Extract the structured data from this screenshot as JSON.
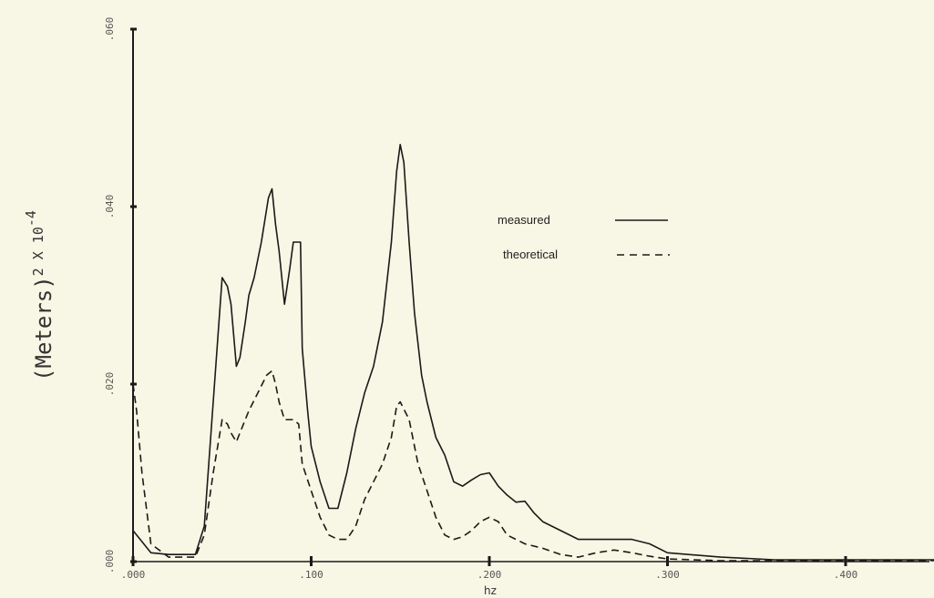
{
  "chart_data": {
    "type": "line",
    "title": "",
    "xlabel": "hz",
    "ylabel": "(Meters)",
    "ylabel_unit": "2 X 10",
    "ylabel_exponent": "-4",
    "xlim": [
      0,
      0.45
    ],
    "ylim": [
      0,
      0.06
    ],
    "x_ticks": [
      0,
      0.1,
      0.2,
      0.3,
      0.4
    ],
    "x_tick_labels": [
      ".000",
      ".100",
      ".200",
      ".300",
      ".400"
    ],
    "y_ticks": [
      0,
      0.02,
      0.04,
      0.06
    ],
    "y_tick_labels": [
      ".000",
      ".020",
      ".040",
      ".060"
    ],
    "legend_position": "upper-right",
    "colors": {
      "ink": "#1a1a1a",
      "background": "#f8f6e4"
    },
    "series": [
      {
        "name": "measured",
        "style": "solid",
        "x": [
          0.0,
          0.002,
          0.01,
          0.02,
          0.035,
          0.04,
          0.045,
          0.05,
          0.053,
          0.055,
          0.058,
          0.06,
          0.063,
          0.065,
          0.068,
          0.072,
          0.076,
          0.078,
          0.08,
          0.082,
          0.085,
          0.088,
          0.09,
          0.092,
          0.094,
          0.095,
          0.098,
          0.1,
          0.105,
          0.11,
          0.115,
          0.12,
          0.125,
          0.13,
          0.135,
          0.14,
          0.145,
          0.148,
          0.15,
          0.152,
          0.155,
          0.158,
          0.162,
          0.165,
          0.17,
          0.175,
          0.18,
          0.185,
          0.19,
          0.195,
          0.2,
          0.205,
          0.21,
          0.215,
          0.22,
          0.225,
          0.23,
          0.24,
          0.25,
          0.26,
          0.27,
          0.28,
          0.29,
          0.3,
          0.33,
          0.36,
          0.4,
          0.45
        ],
        "y": [
          0.0035,
          0.003,
          0.001,
          0.0008,
          0.0008,
          0.004,
          0.018,
          0.032,
          0.031,
          0.029,
          0.022,
          0.023,
          0.027,
          0.03,
          0.032,
          0.036,
          0.041,
          0.042,
          0.038,
          0.035,
          0.029,
          0.033,
          0.036,
          0.036,
          0.036,
          0.024,
          0.017,
          0.013,
          0.009,
          0.006,
          0.006,
          0.01,
          0.015,
          0.019,
          0.022,
          0.027,
          0.036,
          0.044,
          0.047,
          0.045,
          0.036,
          0.028,
          0.021,
          0.018,
          0.014,
          0.012,
          0.009,
          0.0085,
          0.0092,
          0.0098,
          0.01,
          0.0085,
          0.0075,
          0.0067,
          0.0068,
          0.0055,
          0.0045,
          0.0035,
          0.0025,
          0.0025,
          0.0025,
          0.0025,
          0.002,
          0.001,
          0.0005,
          0.0002,
          0.0002,
          0.0002
        ]
      },
      {
        "name": "theoretical",
        "style": "dashed",
        "x": [
          0.0,
          0.002,
          0.005,
          0.01,
          0.02,
          0.035,
          0.04,
          0.045,
          0.05,
          0.053,
          0.055,
          0.058,
          0.06,
          0.065,
          0.07,
          0.075,
          0.078,
          0.08,
          0.082,
          0.085,
          0.088,
          0.09,
          0.093,
          0.095,
          0.1,
          0.105,
          0.11,
          0.115,
          0.12,
          0.125,
          0.13,
          0.135,
          0.14,
          0.145,
          0.148,
          0.15,
          0.155,
          0.16,
          0.165,
          0.17,
          0.175,
          0.18,
          0.185,
          0.19,
          0.195,
          0.2,
          0.205,
          0.21,
          0.22,
          0.23,
          0.24,
          0.25,
          0.26,
          0.27,
          0.28,
          0.29,
          0.3,
          0.33,
          0.36,
          0.4,
          0.45
        ],
        "y": [
          0.02,
          0.017,
          0.01,
          0.002,
          0.0005,
          0.0005,
          0.003,
          0.01,
          0.016,
          0.0155,
          0.0145,
          0.0135,
          0.0145,
          0.017,
          0.019,
          0.021,
          0.0215,
          0.02,
          0.018,
          0.016,
          0.016,
          0.016,
          0.0155,
          0.011,
          0.008,
          0.005,
          0.003,
          0.0025,
          0.0025,
          0.004,
          0.007,
          0.009,
          0.011,
          0.014,
          0.0175,
          0.018,
          0.016,
          0.011,
          0.008,
          0.005,
          0.003,
          0.0025,
          0.0028,
          0.0035,
          0.0045,
          0.005,
          0.0045,
          0.003,
          0.002,
          0.0015,
          0.0008,
          0.0005,
          0.001,
          0.0013,
          0.001,
          0.0006,
          0.0003,
          0.0001,
          0.0001,
          0.0001,
          0.0001
        ]
      }
    ]
  }
}
